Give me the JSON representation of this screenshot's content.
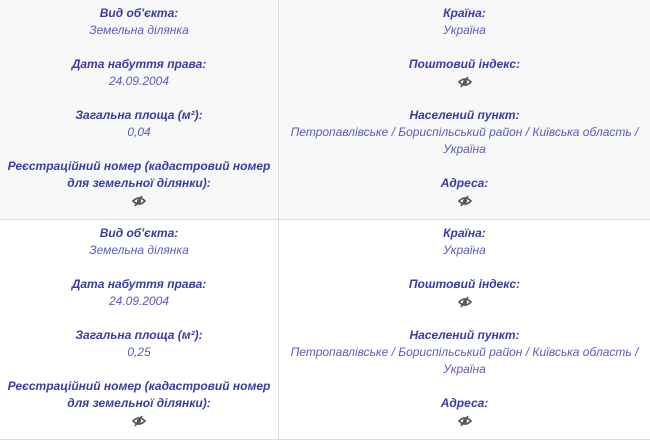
{
  "records": [
    {
      "left": [
        {
          "label": "Вид об'єкта:",
          "value": "Земельна ділянка"
        },
        {
          "label": "Дата набуття права:",
          "value": "24.09.2004"
        },
        {
          "label": "Загальна площа (м²):",
          "value": "0,04"
        },
        {
          "label": "Реєстраційний номер (кадастровий номер для земельної ділянки):",
          "value": null,
          "icon": "hidden-eye-icon"
        }
      ],
      "right": [
        {
          "label": "Країна:",
          "value": "Україна"
        },
        {
          "label": "Поштовий індекс:",
          "value": null,
          "icon": "hidden-eye-icon"
        },
        {
          "label": "Населений пункт:",
          "value": "Петропавлівське / Бориспільський район / Київська область / Україна"
        },
        {
          "label": "Адреса:",
          "value": null,
          "icon": "hidden-eye-icon"
        }
      ]
    },
    {
      "left": [
        {
          "label": "Вид об'єкта:",
          "value": "Земельна ділянка"
        },
        {
          "label": "Дата набуття права:",
          "value": "24.09.2004"
        },
        {
          "label": "Загальна площа (м²):",
          "value": "0,25"
        },
        {
          "label": "Реєстраційний номер (кадастровий номер для земельної ділянки):",
          "value": null,
          "icon": "hidden-eye-icon"
        }
      ],
      "right": [
        {
          "label": "Країна:",
          "value": "Україна"
        },
        {
          "label": "Поштовий індекс:",
          "value": null,
          "icon": "hidden-eye-icon"
        },
        {
          "label": "Населений пункт:",
          "value": "Петропавлівське / Бориспільський район / Київська область / Україна"
        },
        {
          "label": "Адреса:",
          "value": null,
          "icon": "hidden-eye-icon"
        }
      ]
    }
  ]
}
